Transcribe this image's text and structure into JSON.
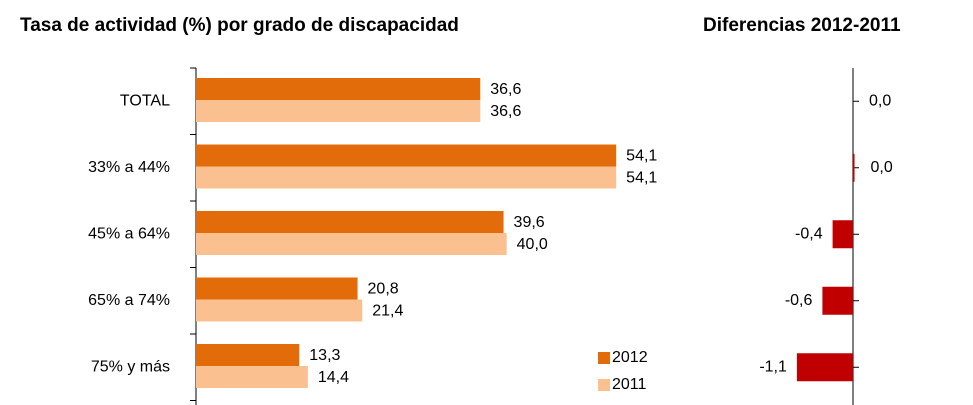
{
  "chart_data": [
    {
      "type": "hbar",
      "title": "Tasa de actividad (%) por grado de discapacidad",
      "categories": [
        "TOTAL",
        "33% a 44%",
        "45% a 64%",
        "65% a 74%",
        "75% y más"
      ],
      "series": [
        {
          "name": "2012",
          "color": "#e36c0a",
          "values": [
            36.6,
            54.1,
            39.6,
            20.8,
            13.3
          ],
          "value_labels": [
            "36,6",
            "54,1",
            "39,6",
            "20,8",
            "13,3"
          ]
        },
        {
          "name": "2011",
          "color": "#fac090",
          "values": [
            36.6,
            54.1,
            40.0,
            21.4,
            14.4
          ],
          "value_labels": [
            "36,6",
            "54,1",
            "40,0",
            "21,4",
            "14,4"
          ]
        }
      ],
      "xlim": [
        0,
        60
      ],
      "legend": "bottom-right"
    },
    {
      "type": "hbar-diff",
      "title": "Diferencias 2012-2011",
      "values": [
        0,
        0.03,
        -0.4,
        -0.6,
        -1.1
      ],
      "value_labels": [
        "0,0",
        "0,0",
        "-0,4",
        "-0,6",
        "-1,1"
      ],
      "color": "#c00000",
      "xlim": [
        -1.4,
        0.4
      ]
    }
  ]
}
